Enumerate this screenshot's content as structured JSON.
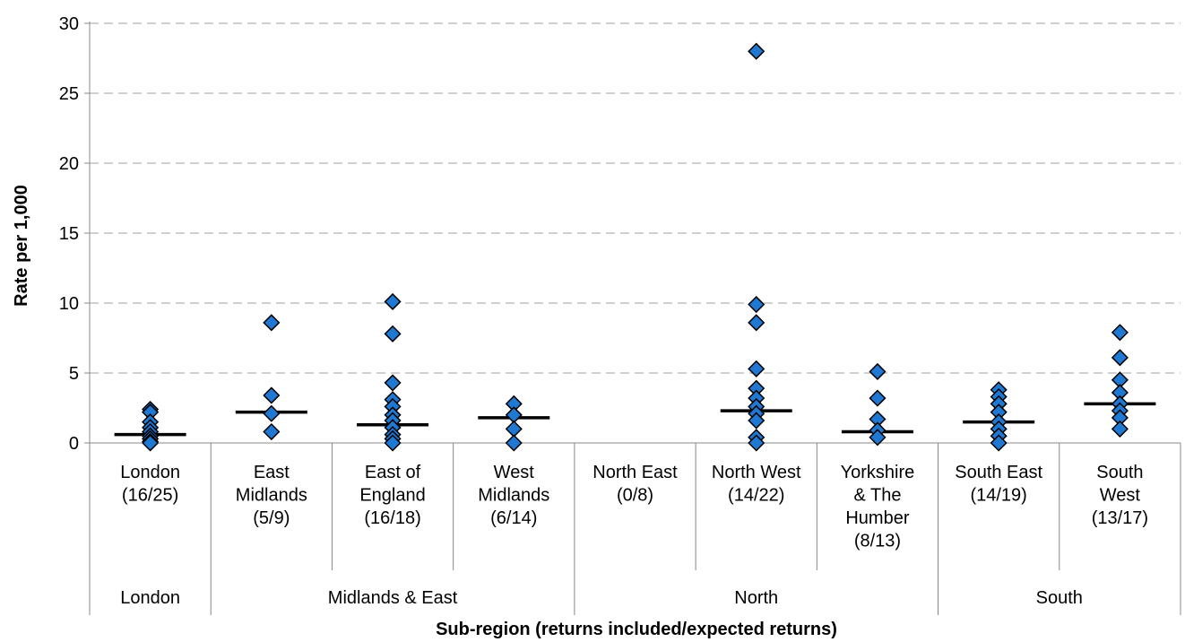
{
  "chart_data": {
    "type": "scatter",
    "title": "",
    "xlabel": "Sub-region (returns included/expected returns)",
    "ylabel": "Rate per 1,000",
    "ylim": [
      0,
      30
    ],
    "yticks": [
      0,
      5,
      10,
      15,
      20,
      25,
      30
    ],
    "grid": true,
    "legend": "none",
    "colors": {
      "marker": "#1f78d1",
      "marker_edge": "#000000",
      "median": "#000000",
      "grid": "#c0c0c0"
    },
    "categories": [
      {
        "lines": [
          "London",
          "(16/25)"
        ],
        "group": "London"
      },
      {
        "lines": [
          "East",
          "Midlands",
          "(5/9)"
        ],
        "group": "Midlands & East"
      },
      {
        "lines": [
          "East of",
          "England",
          "(16/18)"
        ],
        "group": "Midlands & East"
      },
      {
        "lines": [
          "West",
          "Midlands",
          "(6/14)"
        ],
        "group": "Midlands & East"
      },
      {
        "lines": [
          "North East",
          "(0/8)"
        ],
        "group": "North"
      },
      {
        "lines": [
          "North West",
          "(14/22)"
        ],
        "group": "North"
      },
      {
        "lines": [
          "Yorkshire",
          "& The",
          "Humber",
          "(8/13)"
        ],
        "group": "North"
      },
      {
        "lines": [
          "South East",
          "(14/19)"
        ],
        "group": "South"
      },
      {
        "lines": [
          "South",
          "West",
          "(13/17)"
        ],
        "group": "South"
      }
    ],
    "groups": [
      "London",
      "Midlands & East",
      "North",
      "South"
    ],
    "points": [
      [
        2.4,
        2.2,
        1.5,
        1.1,
        0.8,
        0.5,
        0.3,
        0.1,
        0.0
      ],
      [
        8.6,
        3.4,
        2.1,
        0.8
      ],
      [
        10.1,
        7.8,
        4.3,
        3.1,
        2.6,
        2.0,
        1.6,
        1.1,
        0.6,
        0.3,
        0.0
      ],
      [
        2.8,
        2.0,
        1.0,
        0.0
      ],
      [],
      [
        28.0,
        9.9,
        8.6,
        5.3,
        3.9,
        3.2,
        2.6,
        2.1,
        1.6,
        0.4,
        0.0
      ],
      [
        5.1,
        3.2,
        1.7,
        0.9,
        0.4
      ],
      [
        3.8,
        3.3,
        2.8,
        2.2,
        1.5,
        1.0,
        0.5,
        0.0
      ],
      [
        7.9,
        6.1,
        4.5,
        3.6,
        2.8,
        2.3,
        1.8,
        1.0
      ]
    ],
    "medians": [
      0.6,
      2.2,
      1.3,
      1.8,
      null,
      2.3,
      0.8,
      1.5,
      2.8
    ]
  }
}
